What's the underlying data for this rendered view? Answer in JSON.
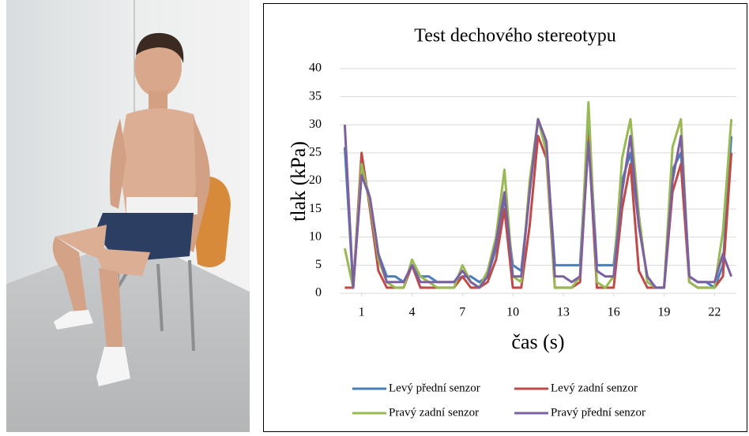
{
  "chart_data": {
    "type": "line",
    "title": "Test dechového stereotypu",
    "x_label": "čas (s)",
    "y_label": "tlak (kPa)",
    "x": [
      0,
      0.5,
      1,
      1.5,
      2,
      2.5,
      3,
      3.5,
      4,
      4.5,
      5,
      5.5,
      6,
      6.5,
      7,
      7.5,
      8,
      8.5,
      9,
      9.5,
      10,
      10.5,
      11,
      11.5,
      12,
      12.5,
      13,
      13.5,
      14,
      14.5,
      15,
      15.5,
      16,
      16.5,
      17,
      17.5,
      18,
      18.5,
      19,
      19.5,
      20,
      20.5,
      21,
      21.5,
      22,
      22.5,
      23
    ],
    "xlim": [
      -0.3,
      23.3
    ],
    "xticks": [
      1,
      4,
      7,
      10,
      13,
      16,
      19,
      22
    ],
    "ylim": [
      0,
      40
    ],
    "yticks": [
      0,
      5,
      10,
      15,
      20,
      25,
      30,
      35,
      40
    ],
    "grid": true,
    "legend": "bottom",
    "series": [
      {
        "name": "Levý přední senzor",
        "color": "#4a7ebb",
        "values": [
          26,
          1,
          22,
          17,
          7,
          3,
          3,
          2,
          5,
          3,
          3,
          2,
          2,
          2,
          3,
          3,
          2,
          3,
          8,
          17,
          5,
          4,
          18,
          31,
          26,
          5,
          5,
          5,
          5,
          31,
          5,
          5,
          5,
          20,
          25,
          12,
          3,
          1,
          1,
          22,
          25,
          3,
          2,
          2,
          1,
          5,
          28
        ]
      },
      {
        "name": "Levý zadní senzor",
        "color": "#be4b48",
        "values": [
          1,
          1,
          25,
          15,
          4,
          1,
          1,
          1,
          5,
          1,
          1,
          1,
          1,
          1,
          3,
          1,
          1,
          2,
          6,
          15,
          1,
          1,
          12,
          28,
          24,
          1,
          1,
          1,
          2,
          28,
          1,
          1,
          1,
          15,
          23,
          4,
          1,
          1,
          1,
          18,
          23,
          2,
          1,
          1,
          1,
          3,
          25
        ]
      },
      {
        "name": "Pravý zadní senzor",
        "color": "#98b954",
        "values": [
          8,
          1,
          23,
          16,
          6,
          2,
          1,
          1,
          6,
          3,
          2,
          1,
          1,
          1,
          5,
          2,
          1,
          4,
          10,
          22,
          3,
          2,
          20,
          31,
          25,
          1,
          1,
          1,
          3,
          34,
          2,
          1,
          3,
          24,
          31,
          14,
          2,
          1,
          1,
          26,
          31,
          2,
          1,
          1,
          1,
          11,
          31
        ]
      },
      {
        "name": "Pravý přední senzor",
        "color": "#7d60a0",
        "values": [
          30,
          1,
          21,
          17,
          7,
          2,
          2,
          2,
          5,
          2,
          2,
          2,
          2,
          2,
          4,
          2,
          1,
          3,
          9,
          18,
          3,
          3,
          18,
          31,
          27,
          3,
          3,
          2,
          3,
          27,
          4,
          3,
          3,
          18,
          28,
          12,
          3,
          1,
          1,
          20,
          28,
          3,
          2,
          2,
          2,
          7,
          3
        ]
      }
    ]
  }
}
